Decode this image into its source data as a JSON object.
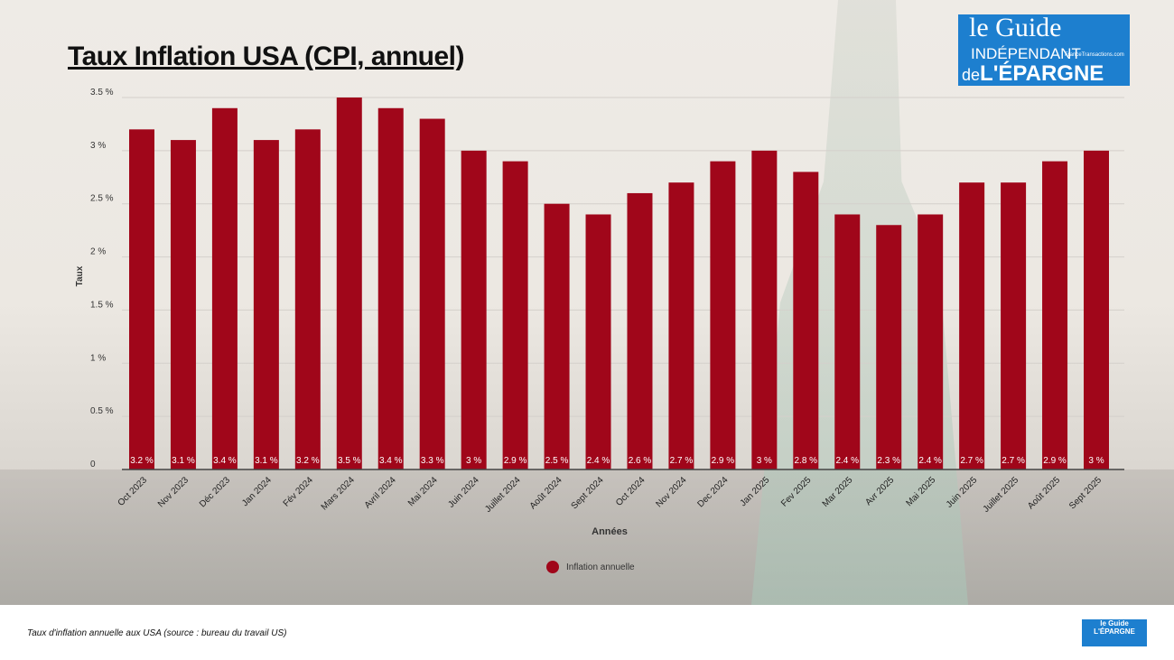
{
  "title": "Taux Inflation USA (CPI, annuel)",
  "logo": {
    "line1": "le Guide",
    "line2": "INDÉPENDANT",
    "line3_prefix": "de",
    "line3": "L'ÉPARGNE",
    "site": "FranceTransactions.com"
  },
  "footer": {
    "caption": "Taux d'inflation annuelle aux USA (source : bureau du travail US)"
  },
  "chart_data": {
    "type": "bar",
    "title": "Taux Inflation USA (CPI, annuel)",
    "xlabel": "Années",
    "ylabel": "Taux",
    "ylim": [
      0,
      3.5
    ],
    "yticks": [
      "0",
      "0.5 %",
      "1 %",
      "1.5 %",
      "2 %",
      "2.5 %",
      "3 %",
      "3.5 %"
    ],
    "grid": true,
    "legend_position": "bottom",
    "bar_color": "#a0061a",
    "categories": [
      "Oct 2023",
      "Nov 2023",
      "Déc 2023",
      "Jan 2024",
      "Fév 2024",
      "Mars 2024",
      "Avril 2024",
      "Mai 2024",
      "Juin 2024",
      "Juillet 2024",
      "Août 2024",
      "Sept 2024",
      "Oct 2024",
      "Nov 2024",
      "Dec 2024",
      "Jan 2025",
      "Fev 2025",
      "Mar 2025",
      "Avr 2025",
      "Mai 2025",
      "Juin 2025",
      "Juillet 2025",
      "Août 2025",
      "Sept 2025"
    ],
    "series": [
      {
        "name": "Inflation annuelle",
        "values": [
          3.2,
          3.1,
          3.4,
          3.1,
          3.2,
          3.5,
          3.4,
          3.3,
          3,
          2.9,
          2.5,
          2.4,
          2.6,
          2.7,
          2.9,
          3,
          2.8,
          2.4,
          2.3,
          2.4,
          2.7,
          2.7,
          2.9,
          3
        ],
        "labels": [
          "3.2 %",
          "3.1 %",
          "3.4 %",
          "3.1 %",
          "3.2 %",
          "3.5 %",
          "3.4 %",
          "3.3 %",
          "3 %",
          "2.9 %",
          "2.5 %",
          "2.4 %",
          "2.6 %",
          "2.7 %",
          "2.9 %",
          "3 %",
          "2.8 %",
          "2.4 %",
          "2.3 %",
          "2.4 %",
          "2.7 %",
          "2.7 %",
          "2.9 %",
          "3 %"
        ]
      }
    ]
  }
}
